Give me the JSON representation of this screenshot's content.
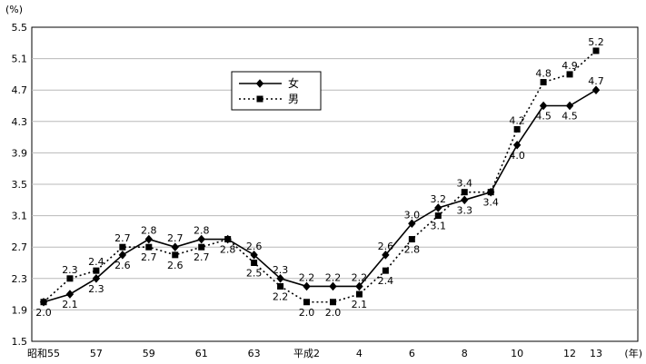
{
  "chart_data": {
    "type": "line",
    "title": "",
    "ylabel": "(%)",
    "x_unit_label": "(年)",
    "ylim": [
      1.5,
      5.5
    ],
    "ytick_step": 0.4,
    "grid": true,
    "legend_position": "top-center",
    "point_labels_visible": true,
    "x_tick_labels": [
      {
        "index": 0,
        "label": "昭和55"
      },
      {
        "index": 2,
        "label": "57"
      },
      {
        "index": 4,
        "label": "59"
      },
      {
        "index": 6,
        "label": "61"
      },
      {
        "index": 8,
        "label": "63"
      },
      {
        "index": 10,
        "label": "平成2"
      },
      {
        "index": 12,
        "label": "4"
      },
      {
        "index": 14,
        "label": "6"
      },
      {
        "index": 16,
        "label": "8"
      },
      {
        "index": 18,
        "label": "10"
      },
      {
        "index": 20,
        "label": "12"
      },
      {
        "index": 21,
        "label": "13"
      }
    ],
    "series": [
      {
        "name": "女",
        "marker": "diamond",
        "line": "solid",
        "values": [
          2.0,
          2.1,
          2.3,
          2.6,
          2.8,
          2.7,
          2.8,
          2.8,
          2.6,
          2.3,
          2.2,
          2.2,
          2.2,
          2.6,
          3.0,
          3.2,
          3.3,
          3.4,
          4.0,
          4.5,
          4.5,
          4.7
        ]
      },
      {
        "name": "男",
        "marker": "square",
        "line": "dotted",
        "values": [
          2.0,
          2.3,
          2.4,
          2.7,
          2.7,
          2.6,
          2.7,
          2.8,
          2.5,
          2.2,
          2.0,
          2.0,
          2.1,
          2.4,
          2.8,
          3.1,
          3.4,
          3.4,
          4.2,
          4.8,
          4.9,
          5.2
        ]
      }
    ],
    "colors": {
      "line": "#000000",
      "grid": "#b8b8b8",
      "background": "#ffffff",
      "plot_border": "#000000",
      "text": "#000000"
    }
  }
}
